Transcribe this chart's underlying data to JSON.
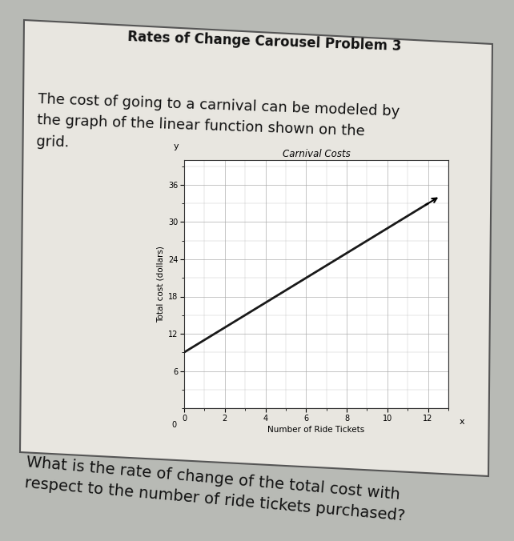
{
  "chart_title": "Carnival Costs",
  "page_title": "Rates of Change Carousel Problem 3",
  "body_text": "The cost of going to a carnival can be modeled by\nthe graph of the linear function shown on the\ngrid.",
  "question_text": "What is the rate of change of the total cost with\nrespect to the number of ride tickets purchased?",
  "xlabel": "Number of Ride Tickets",
  "ylabel": "Total cost (dollars)",
  "x_ticks": [
    0,
    2,
    4,
    6,
    8,
    10,
    12
  ],
  "y_ticks": [
    6,
    12,
    18,
    24,
    30,
    36
  ],
  "xlim": [
    0,
    13
  ],
  "ylim": [
    0,
    40
  ],
  "line_x": [
    0,
    12
  ],
  "line_y": [
    9,
    33
  ],
  "line_color": "#1a1a1a",
  "line_width": 2.0,
  "bg_color": "#b8bab5",
  "card_color": "#e8e6e0",
  "grid_color": "#aaaaaa",
  "title_color": "#111111",
  "card_border_color": "#555555",
  "body_fontsize": 13,
  "title_fontsize": 12,
  "question_fontsize": 14
}
